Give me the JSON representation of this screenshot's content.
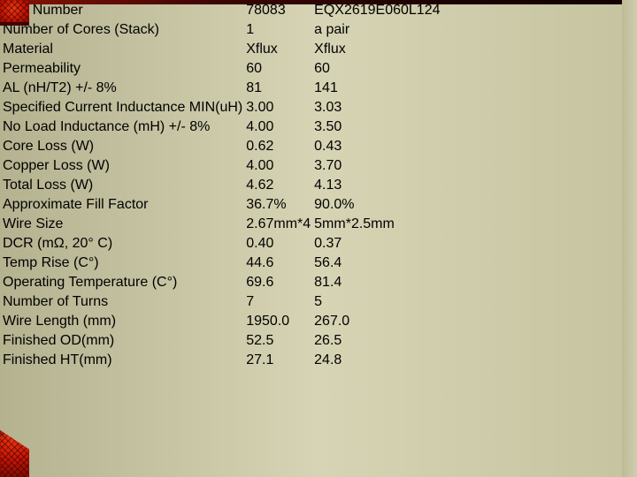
{
  "slide": {
    "description": "inductor-comparison-spec-table",
    "colors": {
      "green_cell_bg": "#d9eeda",
      "green_cell_text": "#157a2e",
      "yellow_cell_bg": "#f5e192",
      "yellow_cell_text": "#9a6b1f",
      "loss_value_text": "#d12424",
      "plain_text": "#161616",
      "grid_border": "#121212",
      "background_olive": "#cbc8a5",
      "background_red_accent": "#c01505"
    }
  },
  "table": {
    "rows": [
      {
        "label": "Part Number",
        "v1": "78083",
        "v2": "EQX2619E060L124",
        "style": "green",
        "align": "center"
      },
      {
        "label": "Number of Cores (Stack)",
        "v1": "1",
        "v2": "a pair",
        "style": "green",
        "align": "center"
      },
      {
        "label": "Material",
        "v1": "Xflux",
        "v2": "Xflux",
        "style": "plain",
        "align": "center"
      },
      {
        "label": "Permeability",
        "v1": "60",
        "v2": "60",
        "style": "plain",
        "align": "center"
      },
      {
        "label": "AL (nH/T2) +/- 8%",
        "v1": "81",
        "v2": "141",
        "style": "plain",
        "align": "center"
      },
      {
        "label": "Specified Current Inductance MIN(uH)",
        "v1": "3.00",
        "v2": "3.03",
        "style": "yellow",
        "align": "center"
      },
      {
        "label": "No Load Inductance (mH) +/- 8%",
        "v1": "4.00",
        "v2": "3.50",
        "style": "yellow",
        "align": "center"
      },
      {
        "label": "Core Loss (W)",
        "v1": "0.62",
        "v2": "0.43",
        "style": "yellow-red",
        "align": "center"
      },
      {
        "label": "Copper Loss (W)",
        "v1": "4.00",
        "v2": "3.70",
        "style": "yellow-red",
        "align": "center"
      },
      {
        "label": "Total Loss (W)",
        "v1": "4.62",
        "v2": "4.13",
        "style": "yellow-red",
        "align": "center"
      },
      {
        "label": "Approximate Fill Factor",
        "v1": "36.7%",
        "v2": "90.0%",
        "style": "yellow",
        "align": "center"
      },
      {
        "label": "Wire Size",
        "v1": "2.67mm*4",
        "v2": "5mm*2.5mm",
        "style": "yellow",
        "align": "center"
      },
      {
        "label": "DCR (mΩ, 20° C)",
        "v1": "0.40",
        "v2": "0.37",
        "style": "yellow",
        "align": "center"
      },
      {
        "label": "Temp Rise (C°)",
        "v1": "44.6",
        "v2": "56.4",
        "style": "yellow",
        "align": "center"
      },
      {
        "label": "Operating Temperature (C°)",
        "v1": "69.6",
        "v2": "81.4",
        "style": "yellow",
        "align": "center"
      },
      {
        "label": "Number of Turns",
        "v1": "7",
        "v2": "5",
        "style": "plain",
        "align": "center"
      },
      {
        "label": "Wire Length (mm)",
        "v1": "1950.0",
        "v2": "267.0",
        "style": "plain",
        "align": "center"
      },
      {
        "label": "Finished OD(mm)",
        "v1": "52.5",
        "v2": "26.5",
        "style": "plain",
        "align": "right"
      },
      {
        "label": "Finished HT(mm)",
        "v1": "27.1",
        "v2": "24.8",
        "style": "plain",
        "align": "right"
      }
    ]
  }
}
